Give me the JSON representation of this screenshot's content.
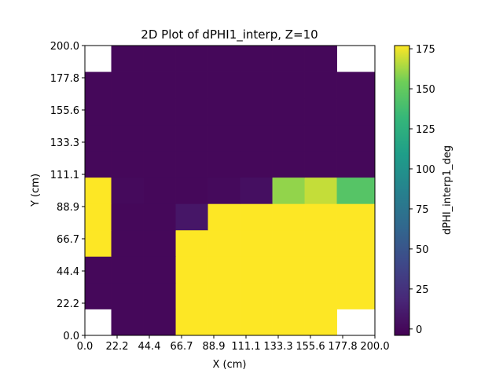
{
  "chart_data": {
    "type": "heatmap",
    "title": "2D Plot of dPHI1_interp, Z=10",
    "xlabel": "X (cm)",
    "ylabel": "Y (cm)",
    "colorbar_label": "dPHI_interp1_deg",
    "colormap": "viridis",
    "xlim": [
      0,
      200
    ],
    "ylim": [
      0,
      200
    ],
    "x_tick_labels": [
      "0.0",
      "22.2",
      "44.4",
      "66.7",
      "88.9",
      "111.1",
      "133.3",
      "155.6",
      "177.8",
      "200.0"
    ],
    "y_tick_labels": [
      "0.0",
      "22.2",
      "44.4",
      "66.7",
      "88.9",
      "111.1",
      "133.3",
      "155.6",
      "177.8",
      "200.0"
    ],
    "colorbar_range": [
      -4,
      177
    ],
    "colorbar_ticks": [
      0,
      25,
      50,
      75,
      100,
      125,
      150,
      175
    ],
    "x_edges": [
      0,
      18.5,
      55.5,
      92.5,
      129.5,
      166.5,
      181.5,
      200
    ],
    "y_edges": [
      0,
      18.5,
      55.5,
      92.5,
      129.5,
      166.5,
      181.5,
      200
    ],
    "grid": [
      [
        0,
        0,
        0,
        177,
        177,
        177,
        177,
        177,
        0
      ],
      [
        0,
        0,
        0,
        177,
        177,
        177,
        177,
        177,
        177
      ],
      [
        0,
        0,
        0,
        177,
        177,
        177,
        177,
        177,
        177
      ],
      [
        177,
        0,
        0,
        177,
        177,
        177,
        177,
        177,
        177
      ],
      [
        177,
        0,
        0,
        8,
        177,
        177,
        177,
        177,
        177
      ],
      [
        177,
        1,
        0,
        0,
        1,
        4,
        160,
        168,
        145
      ],
      [
        0,
        0,
        0,
        0,
        0,
        0,
        0,
        0,
        0
      ],
      [
        0,
        0,
        0,
        0,
        0,
        0,
        0,
        0,
        0
      ],
      [
        0,
        0,
        0,
        0,
        0,
        0,
        0,
        0,
        0
      ],
      [
        0,
        0,
        0,
        0,
        0,
        0,
        0,
        0,
        0
      ],
      [
        0,
        0,
        0,
        0,
        0,
        0,
        0,
        0,
        0
      ]
    ],
    "grid_y_bounds": [
      0,
      18.18,
      36.36,
      54.55,
      72.73,
      90.91,
      109.09,
      127.27,
      145.45,
      163.64,
      181.82,
      200
    ],
    "grid_x_bounds": [
      0,
      18.18,
      40.4,
      62.63,
      84.85,
      107.07,
      129.29,
      151.52,
      173.74,
      200
    ],
    "missing_cells": [
      [
        0,
        0
      ],
      [
        0,
        8
      ],
      [
        10,
        0
      ],
      [
        10,
        8
      ]
    ],
    "grid_on": false
  }
}
